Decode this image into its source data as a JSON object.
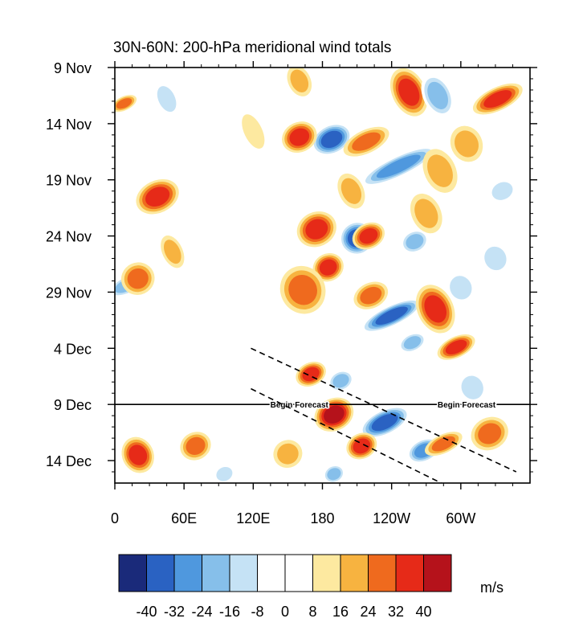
{
  "chart_data": {
    "type": "heatmap",
    "title": "30N-60N: 200-hPa meridional wind totals",
    "x_tick_labels": [
      "0",
      "60E",
      "120E",
      "180",
      "120W",
      "60W"
    ],
    "x_tick_lon": [
      0,
      60,
      120,
      180,
      240,
      300
    ],
    "xlim_lon": [
      0,
      360
    ],
    "y_tick_labels": [
      "9 Nov",
      "14 Nov",
      "19 Nov",
      "24 Nov",
      "29 Nov",
      "4 Dec",
      "9 Dec",
      "14 Dec"
    ],
    "y_tick_day": [
      0,
      5,
      10,
      15,
      20,
      25,
      30,
      35
    ],
    "ylim_day": [
      0,
      37
    ],
    "forecast_start_day": 30,
    "forecast_labels": [
      {
        "text": "Begin Forecast",
        "lon": 160,
        "day": 30
      },
      {
        "text": "Begin Forecast",
        "lon": 305,
        "day": 30
      }
    ],
    "trend_lines": [
      {
        "start": [
          118,
          25
        ],
        "end": [
          348,
          36
        ]
      },
      {
        "start": [
          118,
          28.6
        ],
        "end": [
          283,
          37
        ]
      }
    ],
    "colorbar": {
      "units": "m/s",
      "levels": [
        "-40",
        "-32",
        "-24",
        "-16",
        "-8",
        "0",
        "8",
        "16",
        "24",
        "32",
        "40"
      ],
      "colors": [
        "#1a2a7a",
        "#2a62c2",
        "#4f98de",
        "#86bfea",
        "#c5e2f5",
        "#ffffff",
        "#ffffff",
        "#fde9a0",
        "#f7b340",
        "#ef6a1e",
        "#e62a18",
        "#b5121b"
      ]
    },
    "anomalies": [
      {
        "lon": 188,
        "day": 6.4,
        "a": 13,
        "b": 1.9,
        "v": -40
      },
      {
        "lon": 160,
        "day": 6.2,
        "a": 13,
        "b": 1.6,
        "v": 32
      },
      {
        "lon": 218,
        "day": 6.6,
        "a": 10,
        "b": 2.2,
        "v": 24
      },
      {
        "lon": 246,
        "day": 8.8,
        "a": 9,
        "b": 3.8,
        "v": -32
      },
      {
        "lon": 175,
        "day": 14.4,
        "a": 15,
        "b": 1.8,
        "v": 32
      },
      {
        "lon": 210,
        "day": 15.2,
        "a": 15,
        "b": 1.6,
        "v": -40
      },
      {
        "lon": 220,
        "day": 15.0,
        "a": 11,
        "b": 1.5,
        "v": 32
      },
      {
        "lon": 260,
        "day": 15.5,
        "a": 10,
        "b": 1.3,
        "v": -24
      },
      {
        "lon": 185,
        "day": 17.8,
        "a": 12,
        "b": 1.4,
        "v": 32
      },
      {
        "lon": 163,
        "day": 19.8,
        "a": 21,
        "b": 2.0,
        "v": 24
      },
      {
        "lon": 222,
        "day": 20.3,
        "a": 11,
        "b": 1.6,
        "v": 24
      },
      {
        "lon": 240,
        "day": 22.1,
        "a": 9,
        "b": 3.0,
        "v": -40
      },
      {
        "lon": 278,
        "day": 21.5,
        "a": 22,
        "b": 1.6,
        "v": 32
      },
      {
        "lon": 296,
        "day": 24.9,
        "a": 9,
        "b": 1.8,
        "v": 32
      },
      {
        "lon": 258,
        "day": 24.5,
        "a": 8,
        "b": 1.3,
        "v": -24
      },
      {
        "lon": 170,
        "day": 27.3,
        "a": 10,
        "b": 1.4,
        "v": 32
      },
      {
        "lon": 196,
        "day": 27.9,
        "a": 9,
        "b": 1.2,
        "v": -24
      },
      {
        "lon": 190,
        "day": 30.9,
        "a": 14,
        "b": 1.8,
        "v": 40
      },
      {
        "lon": 234,
        "day": 31.6,
        "a": 11,
        "b": 2.4,
        "v": -40
      },
      {
        "lon": 214,
        "day": 33.7,
        "a": 11,
        "b": 1.4,
        "v": 32
      },
      {
        "lon": 268,
        "day": 34.1,
        "a": 10,
        "b": 1.6,
        "v": -32
      },
      {
        "lon": 285,
        "day": 33.5,
        "a": 8,
        "b": 1.8,
        "v": 24
      },
      {
        "lon": 325,
        "day": 32.6,
        "a": 14,
        "b": 1.7,
        "v": 24
      },
      {
        "lon": 20,
        "day": 34.5,
        "a": 16,
        "b": 1.4,
        "v": 32
      },
      {
        "lon": 70,
        "day": 33.7,
        "a": 12,
        "b": 1.4,
        "v": 24
      },
      {
        "lon": 95,
        "day": 36.2,
        "a": 8,
        "b": 1.0,
        "v": -16
      },
      {
        "lon": 190,
        "day": 36.2,
        "a": 8,
        "b": 1.0,
        "v": -24
      },
      {
        "lon": 37,
        "day": 11.5,
        "a": 14,
        "b": 2.0,
        "v": 32
      },
      {
        "lon": 10,
        "day": 19.4,
        "a": 8,
        "b": 1.8,
        "v": -24
      },
      {
        "lon": 20,
        "day": 18.8,
        "a": 14,
        "b": 1.5,
        "v": 24
      },
      {
        "lon": 8,
        "day": 3.2,
        "a": 6,
        "b": 1.2,
        "v": 24
      },
      {
        "lon": 45,
        "day": 2.8,
        "a": 16,
        "b": 1.0,
        "v": -16
      },
      {
        "lon": 130,
        "day": 1.3,
        "a": 16,
        "b": 0.9,
        "v": -8
      },
      {
        "lon": 160,
        "day": 1.2,
        "a": 14,
        "b": 1.0,
        "v": 16
      },
      {
        "lon": 255,
        "day": 2.2,
        "a": 22,
        "b": 1.5,
        "v": 32
      },
      {
        "lon": 280,
        "day": 2.5,
        "a": 20,
        "b": 1.3,
        "v": -24
      },
      {
        "lon": 332,
        "day": 2.8,
        "a": 10,
        "b": 2.4,
        "v": 32
      },
      {
        "lon": 282,
        "day": 9.2,
        "a": 20,
        "b": 1.4,
        "v": 16
      },
      {
        "lon": 336,
        "day": 11.0,
        "a": 10,
        "b": 1.3,
        "v": -16
      },
      {
        "lon": 330,
        "day": 17.0,
        "a": 14,
        "b": 1.3,
        "v": -16
      },
      {
        "lon": 120,
        "day": 5.7,
        "a": 16,
        "b": 0.8,
        "v": 8
      },
      {
        "lon": 82,
        "day": 12.5,
        "a": 14,
        "b": 0.9,
        "v": -8
      },
      {
        "lon": 88,
        "day": 18.3,
        "a": 18,
        "b": 1.0,
        "v": -8
      },
      {
        "lon": 50,
        "day": 16.4,
        "a": 15,
        "b": 0.9,
        "v": 16
      },
      {
        "lon": 125,
        "day": 21.2,
        "a": 28,
        "b": 1.8,
        "v": -8
      },
      {
        "lon": 305,
        "day": 6.8,
        "a": 16,
        "b": 1.4,
        "v": 16
      },
      {
        "lon": 270,
        "day": 13.0,
        "a": 18,
        "b": 1.3,
        "v": 16
      },
      {
        "lon": 300,
        "day": 19.6,
        "a": 14,
        "b": 1.3,
        "v": -16
      },
      {
        "lon": 205,
        "day": 11.0,
        "a": 16,
        "b": 1.1,
        "v": 16
      },
      {
        "lon": 310,
        "day": 28.5,
        "a": 14,
        "b": 1.3,
        "v": -16
      },
      {
        "lon": 150,
        "day": 34.4,
        "a": 12,
        "b": 1.3,
        "v": 16
      },
      {
        "lon": 115,
        "day": 26.5,
        "a": 9,
        "b": 0.8,
        "v": -8
      }
    ]
  }
}
